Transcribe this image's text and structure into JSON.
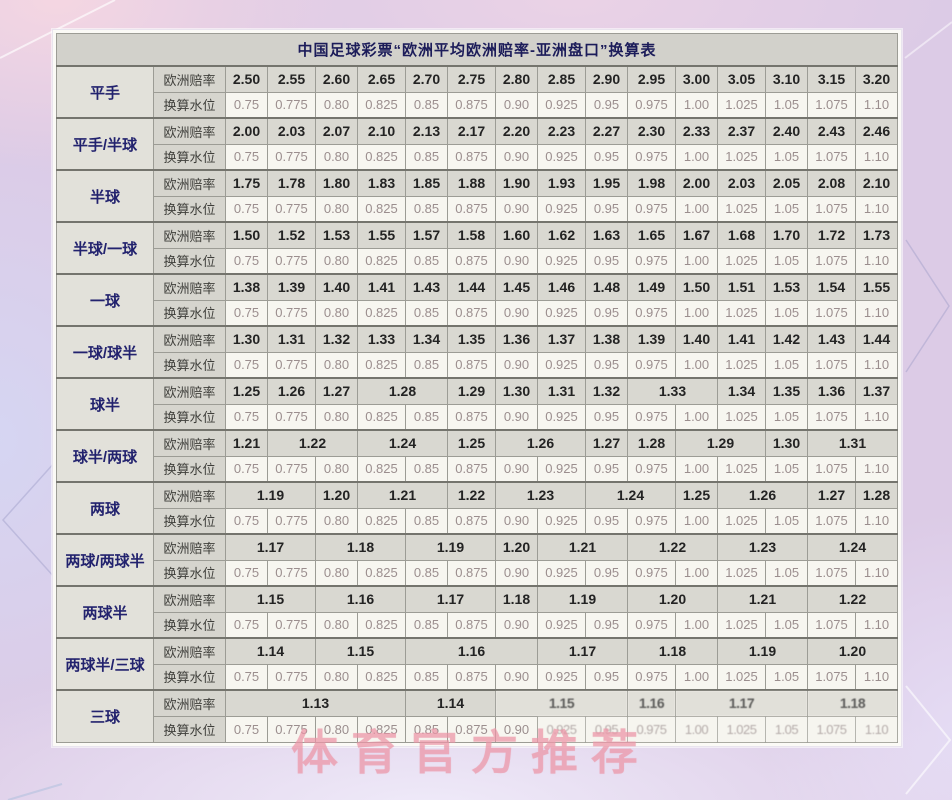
{
  "title": "中国足球彩票“欧洲平均欧洲赔率-亚洲盘口”换算表",
  "watermark": "体育官方推荐",
  "labels": {
    "odds": "欧洲赔率",
    "water": "换算水位"
  },
  "water_levels": [
    "0.75",
    "0.775",
    "0.80",
    "0.825",
    "0.85",
    "0.875",
    "0.90",
    "0.925",
    "0.95",
    "0.975",
    "1.00",
    "1.025",
    "1.05",
    "1.075",
    "1.10"
  ],
  "colors": {
    "page_background": "#dccbe6",
    "odds_cell_bg": "#d9d8d1",
    "water_cell_bg": "#f7f6f0",
    "header_text": "#22226e",
    "watermark_pink": "#ec95a6",
    "border_gray": "#9c9c95"
  },
  "groups": [
    {
      "handicap": "平手",
      "odds": [
        [
          "2.50",
          1
        ],
        [
          "2.55",
          1
        ],
        [
          "2.60",
          1
        ],
        [
          "2.65",
          1
        ],
        [
          "2.70",
          1
        ],
        [
          "2.75",
          1
        ],
        [
          "2.80",
          1
        ],
        [
          "2.85",
          1
        ],
        [
          "2.90",
          1
        ],
        [
          "2.95",
          1
        ],
        [
          "3.00",
          1
        ],
        [
          "3.05",
          1
        ],
        [
          "3.10",
          1
        ],
        [
          "3.15",
          1
        ],
        [
          "3.20",
          1
        ]
      ]
    },
    {
      "handicap": "平手/半球",
      "odds": [
        [
          "2.00",
          1
        ],
        [
          "2.03",
          1
        ],
        [
          "2.07",
          1
        ],
        [
          "2.10",
          1
        ],
        [
          "2.13",
          1
        ],
        [
          "2.17",
          1
        ],
        [
          "2.20",
          1
        ],
        [
          "2.23",
          1
        ],
        [
          "2.27",
          1
        ],
        [
          "2.30",
          1
        ],
        [
          "2.33",
          1
        ],
        [
          "2.37",
          1
        ],
        [
          "2.40",
          1
        ],
        [
          "2.43",
          1
        ],
        [
          "2.46",
          1
        ]
      ]
    },
    {
      "handicap": "半球",
      "odds": [
        [
          "1.75",
          1
        ],
        [
          "1.78",
          1
        ],
        [
          "1.80",
          1
        ],
        [
          "1.83",
          1
        ],
        [
          "1.85",
          1
        ],
        [
          "1.88",
          1
        ],
        [
          "1.90",
          1
        ],
        [
          "1.93",
          1
        ],
        [
          "1.95",
          1
        ],
        [
          "1.98",
          1
        ],
        [
          "2.00",
          1
        ],
        [
          "2.03",
          1
        ],
        [
          "2.05",
          1
        ],
        [
          "2.08",
          1
        ],
        [
          "2.10",
          1
        ]
      ]
    },
    {
      "handicap": "半球/一球",
      "odds": [
        [
          "1.50",
          1
        ],
        [
          "1.52",
          1
        ],
        [
          "1.53",
          1
        ],
        [
          "1.55",
          1
        ],
        [
          "1.57",
          1
        ],
        [
          "1.58",
          1
        ],
        [
          "1.60",
          1
        ],
        [
          "1.62",
          1
        ],
        [
          "1.63",
          1
        ],
        [
          "1.65",
          1
        ],
        [
          "1.67",
          1
        ],
        [
          "1.68",
          1
        ],
        [
          "1.70",
          1
        ],
        [
          "1.72",
          1
        ],
        [
          "1.73",
          1
        ]
      ]
    },
    {
      "handicap": "一球",
      "odds": [
        [
          "1.38",
          1
        ],
        [
          "1.39",
          1
        ],
        [
          "1.40",
          1
        ],
        [
          "1.41",
          1
        ],
        [
          "1.43",
          1
        ],
        [
          "1.44",
          1
        ],
        [
          "1.45",
          1
        ],
        [
          "1.46",
          1
        ],
        [
          "1.48",
          1
        ],
        [
          "1.49",
          1
        ],
        [
          "1.50",
          1
        ],
        [
          "1.51",
          1
        ],
        [
          "1.53",
          1
        ],
        [
          "1.54",
          1
        ],
        [
          "1.55",
          1
        ]
      ]
    },
    {
      "handicap": "一球/球半",
      "odds": [
        [
          "1.30",
          1
        ],
        [
          "1.31",
          1
        ],
        [
          "1.32",
          1
        ],
        [
          "1.33",
          1
        ],
        [
          "1.34",
          1
        ],
        [
          "1.35",
          1
        ],
        [
          "1.36",
          1
        ],
        [
          "1.37",
          1
        ],
        [
          "1.38",
          1
        ],
        [
          "1.39",
          1
        ],
        [
          "1.40",
          1
        ],
        [
          "1.41",
          1
        ],
        [
          "1.42",
          1
        ],
        [
          "1.43",
          1
        ],
        [
          "1.44",
          1
        ]
      ]
    },
    {
      "handicap": "球半",
      "odds": [
        [
          "1.25",
          1
        ],
        [
          "1.26",
          1
        ],
        [
          "1.27",
          1
        ],
        [
          "1.28",
          2
        ],
        [
          "1.29",
          1
        ],
        [
          "1.30",
          1
        ],
        [
          "1.31",
          1
        ],
        [
          "1.32",
          1
        ],
        [
          "1.33",
          2
        ],
        [
          "1.34",
          1
        ],
        [
          "1.35",
          1
        ],
        [
          "1.36",
          1
        ],
        [
          "1.37",
          1
        ]
      ]
    },
    {
      "handicap": "球半/两球",
      "odds": [
        [
          "1.21",
          1
        ],
        [
          "1.22",
          2
        ],
        [
          "1.24",
          2
        ],
        [
          "1.25",
          1
        ],
        [
          "1.26",
          2
        ],
        [
          "1.27",
          1
        ],
        [
          "1.28",
          1
        ],
        [
          "1.29",
          2
        ],
        [
          "1.30",
          1
        ],
        [
          "1.31",
          2
        ]
      ]
    },
    {
      "handicap": "两球",
      "odds": [
        [
          "1.19",
          2
        ],
        [
          "1.20",
          1
        ],
        [
          "1.21",
          2
        ],
        [
          "1.22",
          1
        ],
        [
          "1.23",
          2
        ],
        [
          "1.24",
          2
        ],
        [
          "1.25",
          1
        ],
        [
          "1.26",
          2
        ],
        [
          "1.27",
          1
        ],
        [
          "1.28",
          1
        ]
      ]
    },
    {
      "handicap": "两球/两球半",
      "odds": [
        [
          "1.17",
          2
        ],
        [
          "1.18",
          2
        ],
        [
          "1.19",
          2
        ],
        [
          "1.20",
          1
        ],
        [
          "1.21",
          2
        ],
        [
          "1.22",
          2
        ],
        [
          "1.23",
          2
        ],
        [
          "1.24",
          2
        ]
      ]
    },
    {
      "handicap": "两球半",
      "odds": [
        [
          "1.15",
          2
        ],
        [
          "1.16",
          2
        ],
        [
          "1.17",
          2
        ],
        [
          "1.18",
          1
        ],
        [
          "1.19",
          2
        ],
        [
          "1.20",
          2
        ],
        [
          "1.21",
          2
        ],
        [
          "1.22",
          2
        ]
      ]
    },
    {
      "handicap": "两球半/三球",
      "odds": [
        [
          "1.14",
          2
        ],
        [
          "1.15",
          2
        ],
        [
          "1.16",
          3
        ],
        [
          "1.17",
          2
        ],
        [
          "1.18",
          2
        ],
        [
          "1.19",
          2
        ],
        [
          "1.20",
          2
        ]
      ]
    },
    {
      "handicap": "三球",
      "odds": [
        [
          "1.13",
          4
        ],
        [
          "1.14",
          2
        ],
        [
          "1.15",
          3
        ],
        [
          "1.16",
          1
        ],
        [
          "1.17",
          3
        ],
        [
          "1.18",
          2
        ]
      ]
    }
  ]
}
